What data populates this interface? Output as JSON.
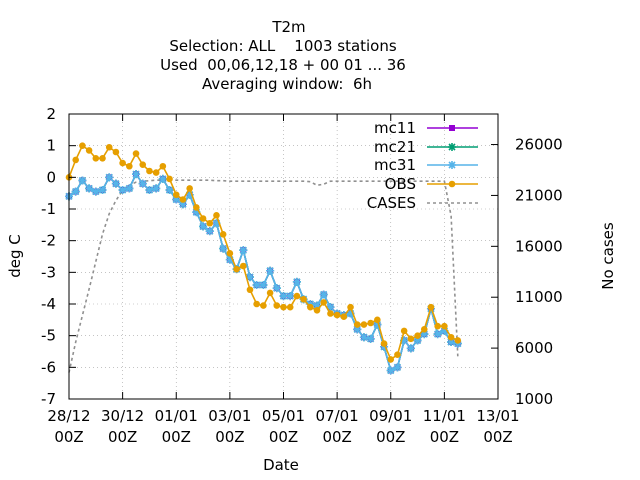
{
  "chart_data": {
    "type": "line",
    "title": "T2m",
    "subtitle_lines": [
      "Selection: ALL    1003 stations",
      "Used  00,06,12,18 + 00 01 ... 36",
      "Averaging window:  6h"
    ],
    "xlabel": "Date",
    "ylabel": "deg C",
    "y2label": "No cases",
    "xlim": [
      "2023-12-28T00:00",
      "2024-01-13T00:00"
    ],
    "ylim": [
      -7,
      2
    ],
    "y2lim": [
      1000,
      29000
    ],
    "grid": true,
    "legend_position": "top-right",
    "xticks": [
      {
        "date": "2023-12-28T00:00",
        "label_day": "28/12",
        "label_hour": "00Z"
      },
      {
        "date": "2023-12-30T00:00",
        "label_day": "30/12",
        "label_hour": "00Z"
      },
      {
        "date": "2024-01-01T00:00",
        "label_day": "01/01",
        "label_hour": "00Z"
      },
      {
        "date": "2024-01-03T00:00",
        "label_day": "03/01",
        "label_hour": "00Z"
      },
      {
        "date": "2024-01-05T00:00",
        "label_day": "05/01",
        "label_hour": "00Z"
      },
      {
        "date": "2024-01-07T00:00",
        "label_day": "07/01",
        "label_hour": "00Z"
      },
      {
        "date": "2024-01-09T00:00",
        "label_day": "09/01",
        "label_hour": "00Z"
      },
      {
        "date": "2024-01-11T00:00",
        "label_day": "11/01",
        "label_hour": "00Z"
      },
      {
        "date": "2024-01-13T00:00",
        "label_day": "13/01",
        "label_hour": "00Z"
      }
    ],
    "yticks": [
      "2",
      "1",
      "0",
      "-1",
      "-2",
      "-3",
      "-4",
      "-5",
      "-6",
      "-7"
    ],
    "y2ticks": [
      "26000",
      "21000",
      "16000",
      "11000",
      "6000",
      "1000"
    ],
    "series": [
      {
        "name": "mc11",
        "color": "#9400d3",
        "marker": "plus-solid",
        "axis": "y",
        "x": [
          "2023-12-28T00:00",
          "2023-12-28T06:00",
          "2023-12-28T12:00",
          "2023-12-28T18:00",
          "2023-12-29T00:00",
          "2023-12-29T06:00",
          "2023-12-29T12:00",
          "2023-12-29T18:00",
          "2023-12-30T00:00",
          "2023-12-30T06:00",
          "2023-12-30T12:00",
          "2023-12-30T18:00",
          "2023-12-31T00:00",
          "2023-12-31T06:00",
          "2023-12-31T12:00",
          "2023-12-31T18:00",
          "2024-01-01T00:00",
          "2024-01-01T06:00",
          "2024-01-01T12:00",
          "2024-01-01T18:00",
          "2024-01-02T00:00",
          "2024-01-02T06:00",
          "2024-01-02T12:00",
          "2024-01-02T18:00",
          "2024-01-03T00:00",
          "2024-01-03T06:00",
          "2024-01-03T12:00",
          "2024-01-03T18:00",
          "2024-01-04T00:00",
          "2024-01-04T06:00",
          "2024-01-04T12:00",
          "2024-01-04T18:00",
          "2024-01-05T00:00",
          "2024-01-05T06:00",
          "2024-01-05T12:00",
          "2024-01-05T18:00",
          "2024-01-06T00:00",
          "2024-01-06T06:00",
          "2024-01-06T12:00",
          "2024-01-06T18:00",
          "2024-01-07T00:00",
          "2024-01-07T06:00",
          "2024-01-07T12:00",
          "2024-01-07T18:00",
          "2024-01-08T00:00",
          "2024-01-08T06:00",
          "2024-01-08T12:00",
          "2024-01-08T18:00",
          "2024-01-09T00:00",
          "2024-01-09T06:00",
          "2024-01-09T12:00",
          "2024-01-09T18:00",
          "2024-01-10T00:00",
          "2024-01-10T06:00",
          "2024-01-10T12:00",
          "2024-01-10T18:00",
          "2024-01-11T00:00",
          "2024-01-11T06:00",
          "2024-01-11T12:00"
        ],
        "values": [
          -0.6,
          -0.45,
          -0.1,
          -0.35,
          -0.45,
          -0.4,
          0.0,
          -0.2,
          -0.4,
          -0.35,
          0.1,
          -0.2,
          -0.4,
          -0.35,
          -0.05,
          -0.4,
          -0.7,
          -0.85,
          -0.55,
          -1.1,
          -1.55,
          -1.7,
          -1.45,
          -2.25,
          -2.6,
          -2.9,
          -2.3,
          -3.15,
          -3.4,
          -3.4,
          -2.95,
          -3.5,
          -3.75,
          -3.75,
          -3.3,
          -3.85,
          -4.0,
          -4.05,
          -3.7,
          -4.1,
          -4.3,
          -4.35,
          -4.3,
          -4.8,
          -5.05,
          -5.1,
          -4.65,
          -5.35,
          -6.1,
          -6.0,
          -5.15,
          -5.4,
          -5.15,
          -4.95,
          -4.15,
          -4.95,
          -4.85,
          -5.2,
          -5.25
        ]
      },
      {
        "name": "mc21",
        "color": "#009e73",
        "marker": "star",
        "axis": "y",
        "x": [
          "2023-12-28T00:00",
          "2023-12-28T06:00",
          "2023-12-28T12:00",
          "2023-12-28T18:00",
          "2023-12-29T00:00",
          "2023-12-29T06:00",
          "2023-12-29T12:00",
          "2023-12-29T18:00",
          "2023-12-30T00:00",
          "2023-12-30T06:00",
          "2023-12-30T12:00",
          "2023-12-30T18:00",
          "2023-12-31T00:00",
          "2023-12-31T06:00",
          "2023-12-31T12:00",
          "2023-12-31T18:00",
          "2024-01-01T00:00",
          "2024-01-01T06:00",
          "2024-01-01T12:00",
          "2024-01-01T18:00",
          "2024-01-02T00:00",
          "2024-01-02T06:00",
          "2024-01-02T12:00",
          "2024-01-02T18:00",
          "2024-01-03T00:00",
          "2024-01-03T06:00",
          "2024-01-03T12:00",
          "2024-01-03T18:00",
          "2024-01-04T00:00",
          "2024-01-04T06:00",
          "2024-01-04T12:00",
          "2024-01-04T18:00",
          "2024-01-05T00:00",
          "2024-01-05T06:00",
          "2024-01-05T12:00",
          "2024-01-05T18:00",
          "2024-01-06T00:00",
          "2024-01-06T06:00",
          "2024-01-06T12:00",
          "2024-01-06T18:00",
          "2024-01-07T00:00",
          "2024-01-07T06:00",
          "2024-01-07T12:00",
          "2024-01-07T18:00",
          "2024-01-08T00:00",
          "2024-01-08T06:00",
          "2024-01-08T12:00",
          "2024-01-08T18:00",
          "2024-01-09T00:00",
          "2024-01-09T06:00",
          "2024-01-09T12:00",
          "2024-01-09T18:00",
          "2024-01-10T00:00",
          "2024-01-10T06:00",
          "2024-01-10T12:00",
          "2024-01-10T18:00",
          "2024-01-11T00:00",
          "2024-01-11T06:00",
          "2024-01-11T12:00"
        ],
        "values": [
          -0.6,
          -0.45,
          -0.1,
          -0.35,
          -0.45,
          -0.4,
          0.0,
          -0.2,
          -0.4,
          -0.35,
          0.1,
          -0.2,
          -0.4,
          -0.35,
          -0.05,
          -0.4,
          -0.7,
          -0.85,
          -0.55,
          -1.1,
          -1.55,
          -1.7,
          -1.45,
          -2.25,
          -2.6,
          -2.9,
          -2.3,
          -3.15,
          -3.4,
          -3.4,
          -2.95,
          -3.5,
          -3.75,
          -3.75,
          -3.3,
          -3.85,
          -4.0,
          -4.05,
          -3.7,
          -4.1,
          -4.3,
          -4.35,
          -4.3,
          -4.8,
          -5.05,
          -5.1,
          -4.65,
          -5.35,
          -6.1,
          -6.0,
          -5.15,
          -5.4,
          -5.15,
          -4.95,
          -4.15,
          -4.95,
          -4.85,
          -5.2,
          -5.25
        ]
      },
      {
        "name": "mc31",
        "color": "#56b4e9",
        "marker": "star",
        "axis": "y",
        "x": [
          "2023-12-28T00:00",
          "2023-12-28T06:00",
          "2023-12-28T12:00",
          "2023-12-28T18:00",
          "2023-12-29T00:00",
          "2023-12-29T06:00",
          "2023-12-29T12:00",
          "2023-12-29T18:00",
          "2023-12-30T00:00",
          "2023-12-30T06:00",
          "2023-12-30T12:00",
          "2023-12-30T18:00",
          "2023-12-31T00:00",
          "2023-12-31T06:00",
          "2023-12-31T12:00",
          "2023-12-31T18:00",
          "2024-01-01T00:00",
          "2024-01-01T06:00",
          "2024-01-01T12:00",
          "2024-01-01T18:00",
          "2024-01-02T00:00",
          "2024-01-02T06:00",
          "2024-01-02T12:00",
          "2024-01-02T18:00",
          "2024-01-03T00:00",
          "2024-01-03T06:00",
          "2024-01-03T12:00",
          "2024-01-03T18:00",
          "2024-01-04T00:00",
          "2024-01-04T06:00",
          "2024-01-04T12:00",
          "2024-01-04T18:00",
          "2024-01-05T00:00",
          "2024-01-05T06:00",
          "2024-01-05T12:00",
          "2024-01-05T18:00",
          "2024-01-06T00:00",
          "2024-01-06T06:00",
          "2024-01-06T12:00",
          "2024-01-06T18:00",
          "2024-01-07T00:00",
          "2024-01-07T06:00",
          "2024-01-07T12:00",
          "2024-01-07T18:00",
          "2024-01-08T00:00",
          "2024-01-08T06:00",
          "2024-01-08T12:00",
          "2024-01-08T18:00",
          "2024-01-09T00:00",
          "2024-01-09T06:00",
          "2024-01-09T12:00",
          "2024-01-09T18:00",
          "2024-01-10T00:00",
          "2024-01-10T06:00",
          "2024-01-10T12:00",
          "2024-01-10T18:00",
          "2024-01-11T00:00",
          "2024-01-11T06:00",
          "2024-01-11T12:00"
        ],
        "values": [
          -0.6,
          -0.45,
          -0.1,
          -0.35,
          -0.45,
          -0.4,
          0.0,
          -0.2,
          -0.4,
          -0.35,
          0.1,
          -0.2,
          -0.4,
          -0.35,
          -0.05,
          -0.4,
          -0.7,
          -0.85,
          -0.55,
          -1.1,
          -1.55,
          -1.7,
          -1.45,
          -2.25,
          -2.6,
          -2.9,
          -2.3,
          -3.15,
          -3.4,
          -3.4,
          -2.95,
          -3.5,
          -3.75,
          -3.75,
          -3.3,
          -3.85,
          -4.0,
          -4.05,
          -3.7,
          -4.1,
          -4.3,
          -4.35,
          -4.3,
          -4.8,
          -5.05,
          -5.1,
          -4.65,
          -5.35,
          -6.1,
          -6.0,
          -5.15,
          -5.4,
          -5.15,
          -4.95,
          -4.15,
          -4.95,
          -4.85,
          -5.2,
          -5.25
        ]
      },
      {
        "name": "OBS",
        "color": "#e69f00",
        "marker": "circle",
        "axis": "y",
        "x": [
          "2023-12-28T00:00",
          "2023-12-28T06:00",
          "2023-12-28T12:00",
          "2023-12-28T18:00",
          "2023-12-29T00:00",
          "2023-12-29T06:00",
          "2023-12-29T12:00",
          "2023-12-29T18:00",
          "2023-12-30T00:00",
          "2023-12-30T06:00",
          "2023-12-30T12:00",
          "2023-12-30T18:00",
          "2023-12-31T00:00",
          "2023-12-31T06:00",
          "2023-12-31T12:00",
          "2023-12-31T18:00",
          "2024-01-01T00:00",
          "2024-01-01T06:00",
          "2024-01-01T12:00",
          "2024-01-01T18:00",
          "2024-01-02T00:00",
          "2024-01-02T06:00",
          "2024-01-02T12:00",
          "2024-01-02T18:00",
          "2024-01-03T00:00",
          "2024-01-03T06:00",
          "2024-01-03T12:00",
          "2024-01-03T18:00",
          "2024-01-04T00:00",
          "2024-01-04T06:00",
          "2024-01-04T12:00",
          "2024-01-04T18:00",
          "2024-01-05T00:00",
          "2024-01-05T06:00",
          "2024-01-05T12:00",
          "2024-01-05T18:00",
          "2024-01-06T00:00",
          "2024-01-06T06:00",
          "2024-01-06T12:00",
          "2024-01-06T18:00",
          "2024-01-07T00:00",
          "2024-01-07T06:00",
          "2024-01-07T12:00",
          "2024-01-07T18:00",
          "2024-01-08T00:00",
          "2024-01-08T06:00",
          "2024-01-08T12:00",
          "2024-01-08T18:00",
          "2024-01-09T00:00",
          "2024-01-09T06:00",
          "2024-01-09T12:00",
          "2024-01-09T18:00",
          "2024-01-10T00:00",
          "2024-01-10T06:00",
          "2024-01-10T12:00",
          "2024-01-10T18:00",
          "2024-01-11T00:00",
          "2024-01-11T06:00",
          "2024-01-11T12:00"
        ],
        "values": [
          0.0,
          0.55,
          1.0,
          0.85,
          0.6,
          0.6,
          0.95,
          0.8,
          0.45,
          0.35,
          0.75,
          0.4,
          0.2,
          0.15,
          0.35,
          -0.05,
          -0.55,
          -0.7,
          -0.35,
          -0.95,
          -1.3,
          -1.45,
          -1.2,
          -1.8,
          -2.4,
          -2.9,
          -2.8,
          -3.55,
          -4.0,
          -4.05,
          -3.65,
          -4.05,
          -4.1,
          -4.1,
          -3.75,
          -3.85,
          -4.1,
          -4.2,
          -3.95,
          -4.3,
          -4.35,
          -4.4,
          -4.1,
          -4.65,
          -4.65,
          -4.6,
          -4.5,
          -5.25,
          -5.75,
          -5.6,
          -4.85,
          -5.1,
          -5.0,
          -4.8,
          -4.1,
          -4.7,
          -4.7,
          -5.05,
          -5.15
        ]
      },
      {
        "name": "CASES",
        "color": "#909090",
        "marker": "none",
        "dash": true,
        "axis": "y2",
        "x": [
          "2023-12-28T00:00",
          "2023-12-28T06:00",
          "2023-12-28T12:00",
          "2023-12-28T18:00",
          "2023-12-29T00:00",
          "2023-12-29T06:00",
          "2023-12-29T12:00",
          "2023-12-29T18:00",
          "2023-12-30T00:00",
          "2023-12-30T06:00",
          "2023-12-30T12:00",
          "2023-12-30T18:00",
          "2023-12-31T00:00",
          "2023-12-31T06:00",
          "2023-12-31T12:00",
          "2023-12-31T18:00",
          "2024-01-01T00:00",
          "2024-01-01T06:00",
          "2024-01-01T12:00",
          "2024-01-01T18:00",
          "2024-01-02T00:00",
          "2024-01-02T06:00",
          "2024-01-02T12:00",
          "2024-01-02T18:00",
          "2024-01-03T00:00",
          "2024-01-03T06:00",
          "2024-01-03T12:00",
          "2024-01-03T18:00",
          "2024-01-04T00:00",
          "2024-01-04T06:00",
          "2024-01-04T12:00",
          "2024-01-04T18:00",
          "2024-01-05T00:00",
          "2024-01-05T06:00",
          "2024-01-05T12:00",
          "2024-01-05T18:00",
          "2024-01-06T00:00",
          "2024-01-06T06:00",
          "2024-01-06T12:00",
          "2024-01-06T18:00",
          "2024-01-07T00:00",
          "2024-01-07T06:00",
          "2024-01-07T12:00",
          "2024-01-07T18:00",
          "2024-01-08T00:00",
          "2024-01-08T06:00",
          "2024-01-08T12:00",
          "2024-01-08T18:00",
          "2024-01-09T00:00",
          "2024-01-09T06:00",
          "2024-01-09T12:00",
          "2024-01-09T18:00",
          "2024-01-10T00:00",
          "2024-01-10T06:00",
          "2024-01-10T12:00",
          "2024-01-10T18:00",
          "2024-01-11T00:00",
          "2024-01-11T06:00",
          "2024-01-11T12:00"
        ],
        "values": [
          3600,
          6600,
          9200,
          11800,
          14500,
          17200,
          19200,
          20500,
          21500,
          22000,
          22300,
          22400,
          22450,
          22500,
          22500,
          22500,
          22500,
          22500,
          22500,
          22500,
          22500,
          22500,
          22450,
          22450,
          22400,
          22400,
          22400,
          22400,
          22400,
          22400,
          22400,
          22400,
          22400,
          22400,
          22400,
          22400,
          22350,
          22000,
          22100,
          22400,
          22400,
          22400,
          22400,
          22400,
          22400,
          22400,
          22400,
          22400,
          22400,
          22400,
          22400,
          22400,
          22400,
          22400,
          22400,
          22400,
          22400,
          19000,
          5200
        ]
      }
    ]
  }
}
